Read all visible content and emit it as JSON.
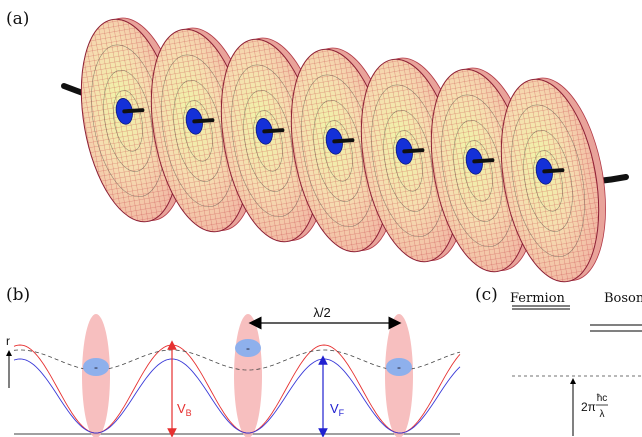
{
  "panels": {
    "a": {
      "label": "(a)",
      "disk_count": 7
    },
    "b": {
      "label": "(b)",
      "axis_label": "r",
      "spacing_label": "λ/2",
      "vb_label": {
        "main": "V",
        "sub": "B"
      },
      "vf_label": {
        "main": "V",
        "sub": "F"
      },
      "fermion_marker": "-"
    },
    "c": {
      "label": "(c)",
      "fermion_header": "Fermion",
      "boson_header": "Boson",
      "gap_label": {
        "prefix": "2π",
        "num": "ħc",
        "den": "λ"
      }
    }
  },
  "colors": {
    "disk_fill": "#f4c4a4",
    "disk_center": "#eef7a0",
    "disk_mesh": "#c0303c",
    "core_blue": "#1430d8",
    "vortex_line": "#111111",
    "boson_potential": "#e63030",
    "fermion_potential": "#3a3ad8",
    "boson_cloud": "#f6b4b4",
    "fermion_cloud": "#8eb0ec"
  }
}
